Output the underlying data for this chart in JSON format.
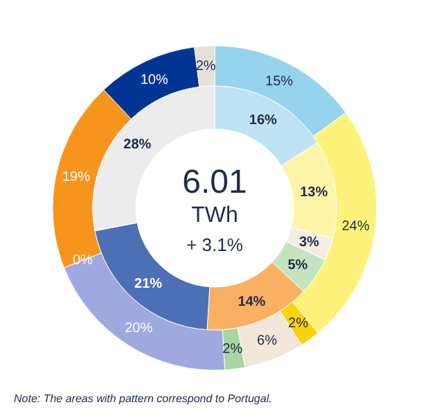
{
  "chart_data": {
    "type": "donut",
    "annotations": [
      "6.01",
      "TWh",
      "+ 3.1%",
      "Note: The areas with pattern correspond to Portugal."
    ],
    "series": [
      {
        "values": [
          15,
          24,
          2,
          6,
          2,
          20,
          0,
          19,
          10,
          2
        ],
        "value_labels": [
          "15%",
          "24%",
          "2%",
          "6%",
          "2%",
          "20%",
          "0%",
          "19%",
          "10%",
          "2%"
        ],
        "colors": [
          "#96d4ee",
          "#fff27a",
          "#fcd20a",
          "#f1e8da",
          "#a8d5a2",
          "#a0a8e0",
          "#f7941d",
          "#f7941d",
          "#003594",
          "#e4e1da"
        ]
      },
      {
        "values": [
          16,
          13,
          3,
          5,
          14,
          21,
          28
        ],
        "value_labels": [
          "16%",
          "13%",
          "3%",
          "5%",
          "14%",
          "21%",
          "28%"
        ],
        "colors": [
          "#bfe3f4",
          "#fff5a8",
          "#f3ede2",
          "#c4e3bf",
          "#f9b063",
          "#4d6fb5",
          "#ececec"
        ]
      }
    ]
  }
}
